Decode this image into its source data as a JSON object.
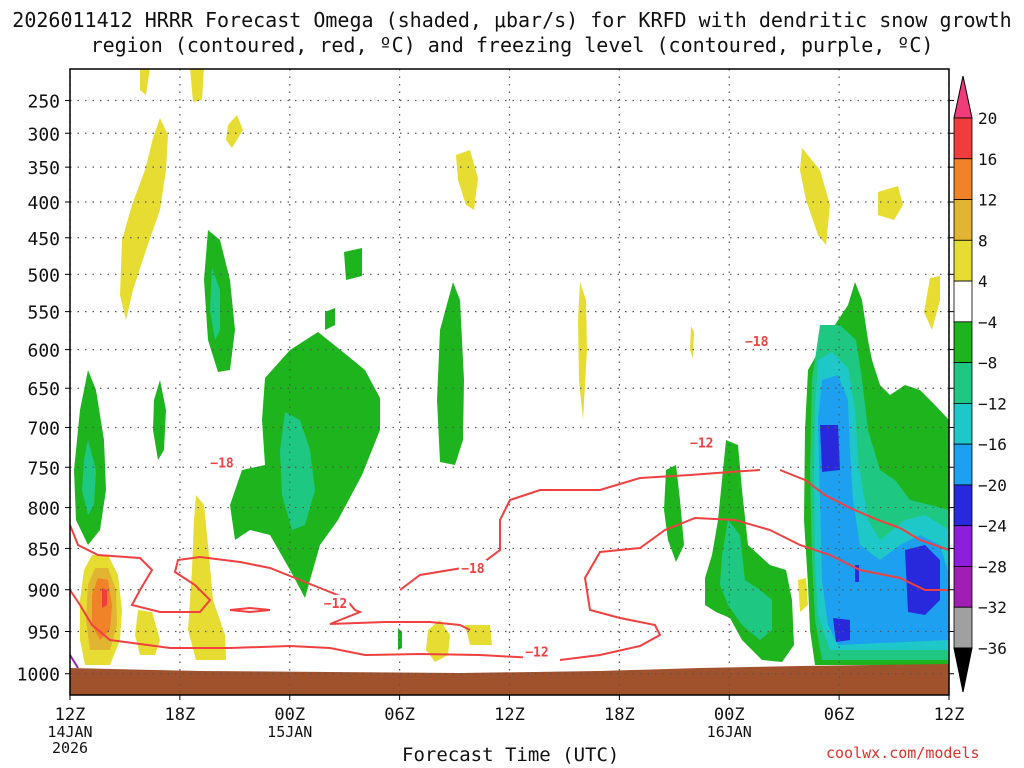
{
  "title": "2026011412 HRRR Forecast Omega (shaded, μbar/s) for KRFD with dendritic snow growth region (contoured, red, ºC) and freezing level (contoured, purple, ºC)",
  "credit": "coolwx.com/models",
  "chart_data": {
    "type": "time-height cross section",
    "xlabel": "Forecast Time (UTC)",
    "ylabel": "",
    "x_ticks": [
      {
        "hour": 0,
        "label": "12Z",
        "sub": [
          "14JAN",
          "2026"
        ]
      },
      {
        "hour": 6,
        "label": "18Z",
        "sub": []
      },
      {
        "hour": 12,
        "label": "00Z",
        "sub": [
          "15JAN"
        ]
      },
      {
        "hour": 18,
        "label": "06Z",
        "sub": []
      },
      {
        "hour": 24,
        "label": "12Z",
        "sub": []
      },
      {
        "hour": 30,
        "label": "18Z",
        "sub": []
      },
      {
        "hour": 36,
        "label": "00Z",
        "sub": [
          "16JAN"
        ]
      },
      {
        "hour": 42,
        "label": "06Z",
        "sub": []
      },
      {
        "hour": 48,
        "label": "12Z",
        "sub": []
      }
    ],
    "y_ticks": [
      250,
      300,
      350,
      400,
      450,
      500,
      550,
      600,
      650,
      700,
      750,
      800,
      850,
      900,
      950,
      1000
    ],
    "ylim": [
      1025,
      200
    ],
    "colorbar": {
      "labels": [
        "20",
        "16",
        "12",
        "8",
        "4",
        "−4",
        "−8",
        "−12",
        "−16",
        "−20",
        "−24",
        "−28",
        "−32",
        "−36"
      ],
      "colors": [
        "#f03c78",
        "#f03c3c",
        "#f08228",
        "#e1b432",
        "#e6dc32",
        "#ffffff",
        "#1eb41e",
        "#1ec882",
        "#1ec8c8",
        "#1ea0f0",
        "#2828dc",
        "#8c1edc",
        "#a01eb4",
        "#a0a0a0",
        "#000000"
      ]
    },
    "contours": [
      {
        "label": "−12",
        "color": "#f04040",
        "positions": [
          {
            "hour": 14.5,
            "p": 917
          },
          {
            "hour": 34.5,
            "p": 720
          },
          {
            "hour": 25.5,
            "p": 975
          }
        ]
      },
      {
        "label": "−18",
        "color": "#f04040",
        "positions": [
          {
            "hour": 8.3,
            "p": 745
          },
          {
            "hour": 22.0,
            "p": 875
          },
          {
            "hour": 37.5,
            "p": 590
          }
        ]
      }
    ]
  }
}
